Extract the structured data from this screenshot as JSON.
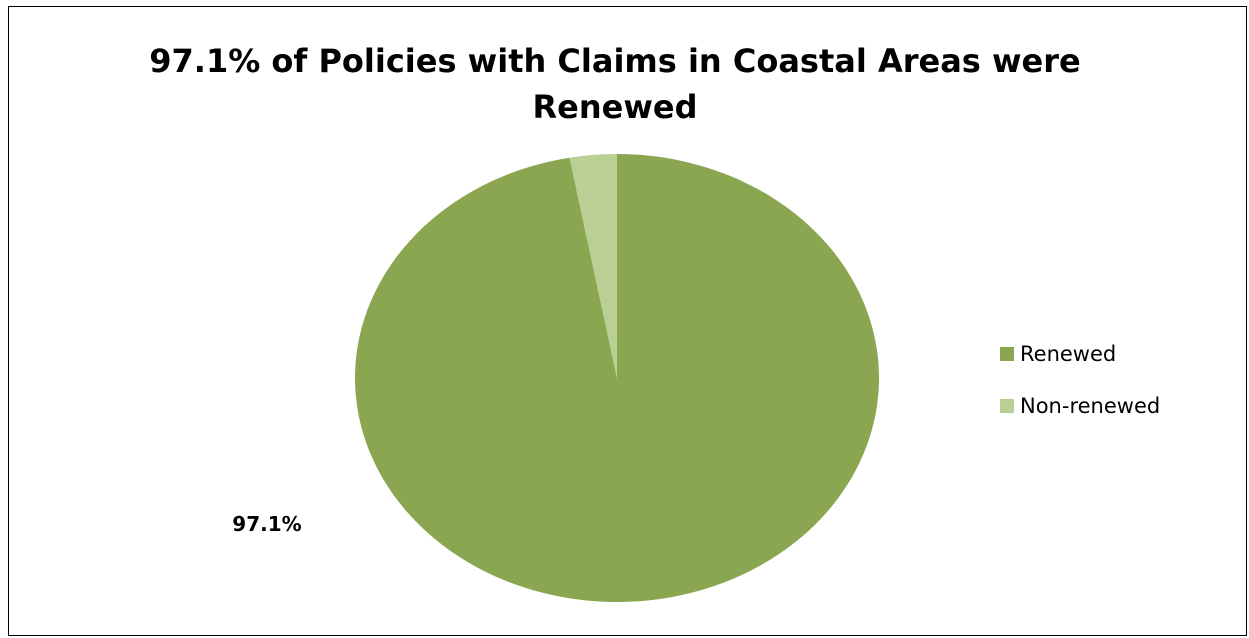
{
  "chart_data": {
    "type": "pie",
    "title_line1": "97.1% of Policies with Claims in Coastal Areas were",
    "title_line2": "Renewed",
    "categories": [
      "Renewed",
      "Non-renewed"
    ],
    "values": [
      97.1,
      2.9
    ],
    "colors": [
      "#8aa650",
      "#b9cf94"
    ],
    "data_labels": [
      "97.1%",
      ""
    ],
    "legend_position": "right"
  }
}
